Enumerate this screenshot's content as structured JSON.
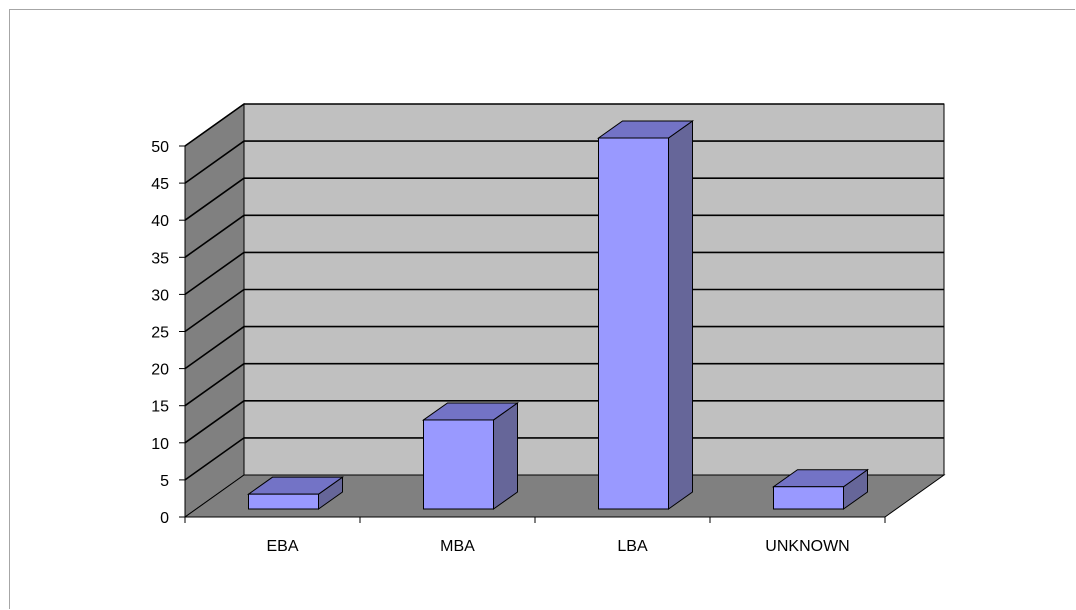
{
  "chart_data": {
    "type": "bar",
    "style": "3d-column",
    "categories": [
      "EBA",
      "MBA",
      "LBA",
      "UNKNOWN"
    ],
    "values": [
      2,
      12,
      50,
      3
    ],
    "ylim": [
      0,
      50
    ],
    "yticks": [
      0,
      5,
      10,
      15,
      20,
      25,
      30,
      35,
      40,
      45,
      50
    ],
    "title": "",
    "xlabel": "",
    "ylabel": "",
    "grid": true,
    "legend": "none",
    "colors": {
      "bar_front": "#9999ff",
      "bar_side": "#666699",
      "bar_top": "#7373c6",
      "back_wall": "#c0c0c0",
      "side_wall": "#808080",
      "floor": "#808080",
      "gridline": "#000000"
    }
  }
}
